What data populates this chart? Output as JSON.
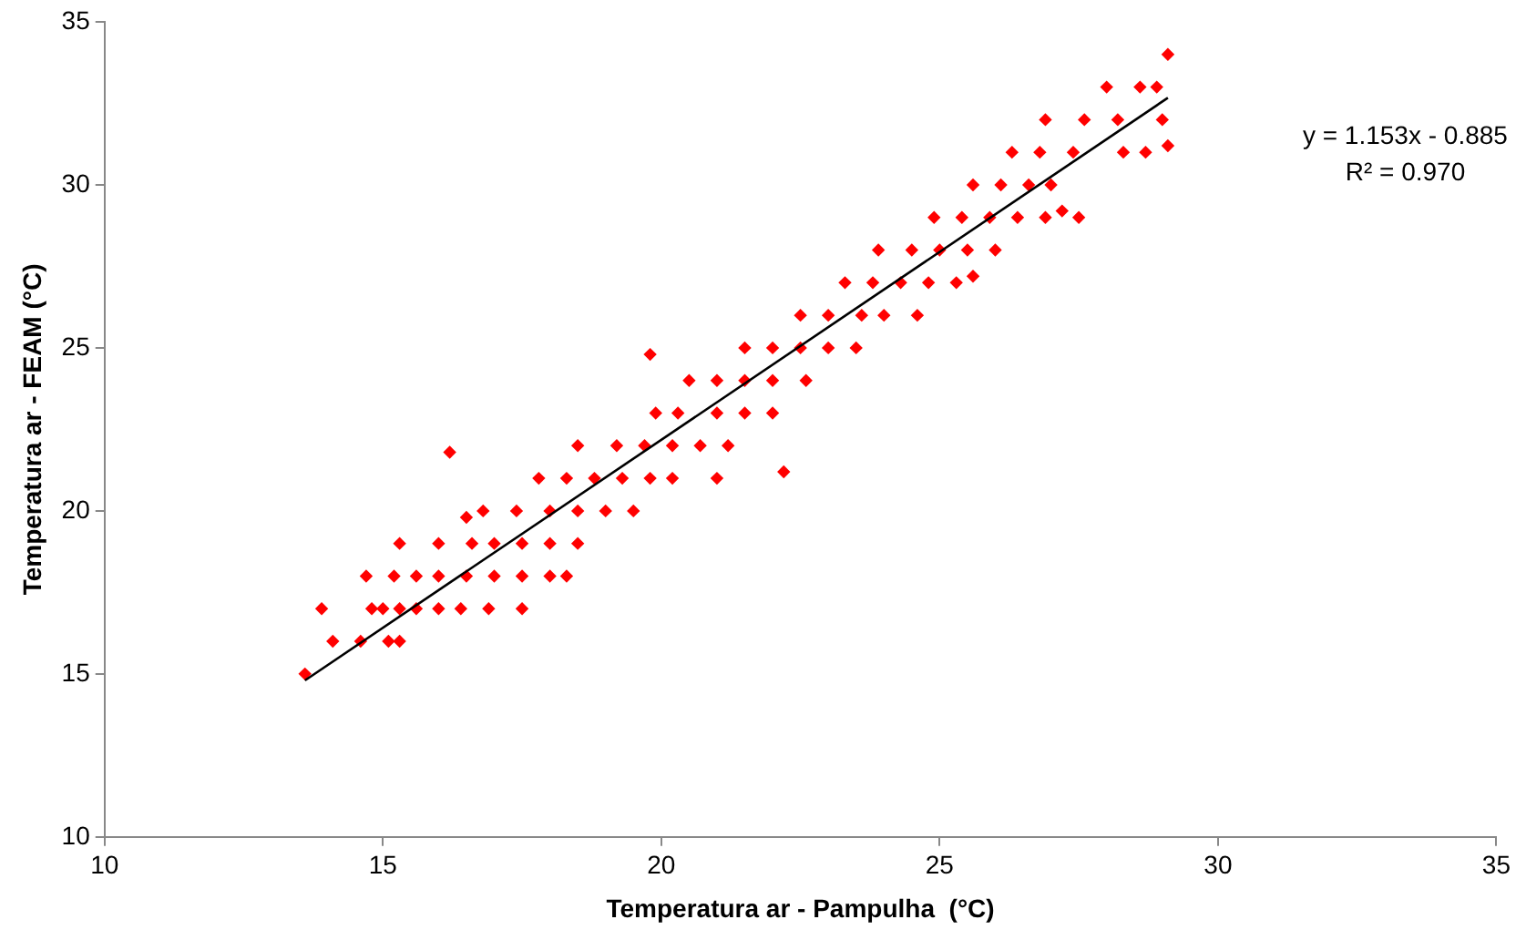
{
  "chart_data": {
    "type": "scatter",
    "xlabel": "Temperatura ar - Pampulha  (°C)",
    "ylabel": "Temperatura ar - FEAM (°C)",
    "xlim": [
      10,
      35
    ],
    "xticks": [
      10,
      15,
      20,
      25,
      30,
      35
    ],
    "ylim": [
      10,
      35
    ],
    "yticks": [
      10,
      15,
      20,
      25,
      30,
      35
    ],
    "grid": false,
    "legend": false,
    "marker": "diamond",
    "annotations": [
      "y = 1.153x - 0.885",
      "R² = 0.970"
    ],
    "series": [
      {
        "color": "#ff0000",
        "x": [
          13.6,
          14.1,
          14.6,
          15.1,
          15.3,
          13.9,
          14.8,
          15.0,
          15.3,
          15.6,
          16.0,
          16.4,
          16.9,
          17.5,
          14.7,
          15.2,
          15.6,
          16.0,
          16.5,
          17.0,
          17.5,
          18.0,
          18.3,
          15.3,
          16.0,
          16.6,
          17.0,
          17.5,
          18.0,
          18.5,
          16.8,
          17.4,
          18.0,
          18.5,
          19.0,
          19.5,
          17.8,
          18.3,
          18.8,
          19.3,
          19.8,
          20.2,
          21.0,
          18.5,
          19.2,
          19.7,
          20.2,
          20.7,
          21.2,
          19.9,
          20.3,
          21.0,
          21.5,
          22.0,
          20.5,
          21.0,
          21.5,
          22.0,
          22.6,
          21.5,
          22.0,
          22.5,
          23.0,
          23.5,
          22.5,
          23.0,
          23.6,
          24.0,
          24.6,
          23.3,
          23.8,
          24.3,
          24.8,
          25.3,
          23.9,
          24.5,
          25.0,
          25.5,
          26.0,
          24.9,
          25.4,
          25.9,
          26.4,
          26.9,
          27.5,
          25.6,
          26.1,
          26.6,
          27.0,
          26.3,
          26.8,
          27.4,
          28.3,
          28.7,
          26.9,
          27.6,
          28.2,
          29.0,
          28.0,
          28.6,
          28.9,
          29.1,
          16.2,
          22.2,
          19.8,
          29.1,
          25.6,
          27.2,
          16.5
        ],
        "values": [
          15,
          16,
          16,
          16,
          16,
          17,
          17,
          17,
          17,
          17,
          17,
          17,
          17,
          17,
          18,
          18,
          18,
          18,
          18,
          18,
          18,
          18,
          18,
          19,
          19,
          19,
          19,
          19,
          19,
          19,
          20,
          20,
          20,
          20,
          20,
          20,
          21,
          21,
          21,
          21,
          21,
          21,
          21,
          22,
          22,
          22,
          22,
          22,
          22,
          23,
          23,
          23,
          23,
          23,
          24,
          24,
          24,
          24,
          24,
          25,
          25,
          25,
          25,
          25,
          26,
          26,
          26,
          26,
          26,
          27,
          27,
          27,
          27,
          27,
          28,
          28,
          28,
          28,
          28,
          29,
          29,
          29,
          29,
          29,
          29,
          30,
          30,
          30,
          30,
          31,
          31,
          31,
          31,
          31,
          32,
          32,
          32,
          32,
          33,
          33,
          33,
          34,
          21.8,
          21.2,
          24.8,
          31.2,
          27.2,
          29.2,
          19.8
        ]
      },
      {
        "type": "line",
        "color": "#000000",
        "marker": "none",
        "x": [
          13.6,
          29.1
        ],
        "values": [
          14.8,
          32.67
        ]
      }
    ]
  }
}
